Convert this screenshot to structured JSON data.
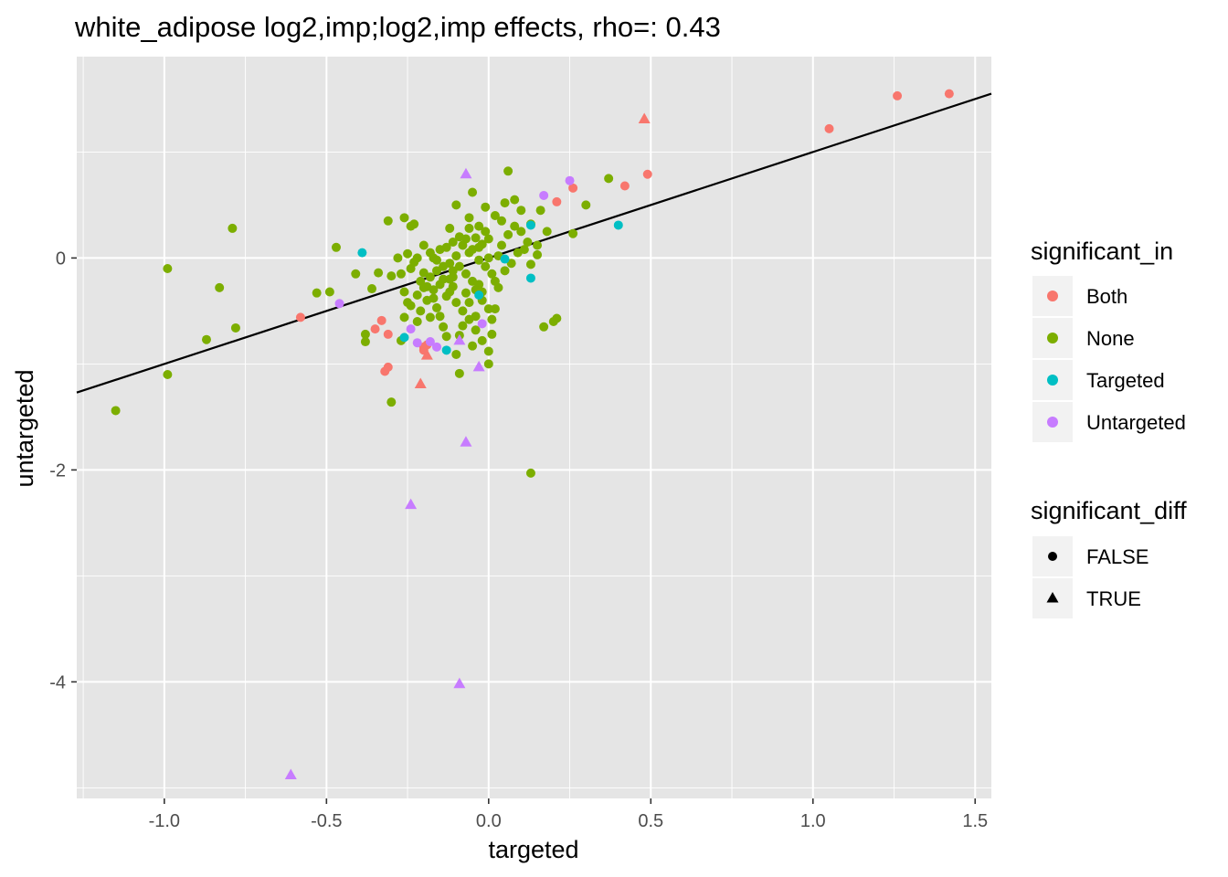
{
  "chart_data": {
    "type": "scatter",
    "title": "white_adipose log2,imp;log2,imp effects, rho=: 0.43",
    "xlabel": "targeted",
    "ylabel": "untargeted",
    "xlim": [
      -1.27,
      1.55
    ],
    "ylim": [
      -5.1,
      1.9
    ],
    "x_ticks": [
      -1.0,
      -0.5,
      0.0,
      0.5,
      1.0,
      1.5
    ],
    "x_tick_labels": [
      "-1.0",
      "-0.5",
      "0.0",
      "0.5",
      "1.0",
      "1.5"
    ],
    "y_ticks": [
      0,
      -2,
      -4
    ],
    "y_tick_labels": [
      "0",
      "-2",
      "-4"
    ],
    "grid": true,
    "panel_background": "#e5e5e5",
    "grid_color": "#ffffff",
    "fit_line": {
      "x": [
        -1.27,
        1.55
      ],
      "y": [
        -1.27,
        1.55
      ],
      "color": "#000000"
    },
    "colors": {
      "Both": "#f8766d",
      "None": "#7cae00",
      "Targeted": "#00bfc4",
      "Untargeted": "#c77cff"
    },
    "legend_placement": "right",
    "legends": [
      {
        "title": "significant_in",
        "kind": "color",
        "entries": [
          "Both",
          "None",
          "Targeted",
          "Untargeted"
        ]
      },
      {
        "title": "significant_diff",
        "kind": "shape",
        "entries": [
          {
            "label": "FALSE",
            "shape": "circle"
          },
          {
            "label": "TRUE",
            "shape": "triangle"
          }
        ]
      }
    ],
    "series": [
      {
        "name": "Both",
        "shape": "circle",
        "points": [
          [
            1.42,
            1.55
          ],
          [
            1.26,
            1.53
          ],
          [
            1.05,
            1.22
          ],
          [
            0.49,
            0.79
          ],
          [
            0.42,
            0.68
          ],
          [
            0.26,
            0.66
          ],
          [
            0.21,
            0.53
          ],
          [
            -0.58,
            -0.56
          ],
          [
            -0.35,
            -0.67
          ],
          [
            -0.33,
            -0.59
          ],
          [
            -0.31,
            -0.72
          ],
          [
            -0.32,
            -1.07
          ],
          [
            -0.31,
            -1.03
          ],
          [
            -0.2,
            -0.84
          ],
          [
            -0.2,
            -0.87
          ],
          [
            -0.19,
            -0.82
          ]
        ]
      },
      {
        "name": "Both",
        "shape": "triangle",
        "points": [
          [
            0.48,
            1.31
          ],
          [
            -0.21,
            -1.19
          ],
          [
            -0.19,
            -0.92
          ]
        ]
      },
      {
        "name": "Targeted",
        "shape": "circle",
        "points": [
          [
            -0.39,
            0.05
          ],
          [
            0.4,
            0.31
          ],
          [
            0.13,
            0.31
          ],
          [
            0.13,
            -0.19
          ],
          [
            0.05,
            -0.01
          ],
          [
            -0.03,
            -0.35
          ],
          [
            -0.13,
            -0.87
          ],
          [
            -0.26,
            -0.75
          ]
        ]
      },
      {
        "name": "Untargeted",
        "shape": "circle",
        "points": [
          [
            0.25,
            0.73
          ],
          [
            0.17,
            0.59
          ],
          [
            -0.46,
            -0.43
          ],
          [
            -0.24,
            -0.67
          ],
          [
            -0.22,
            -0.8
          ],
          [
            -0.16,
            -0.84
          ],
          [
            -0.18,
            -0.79
          ],
          [
            -0.02,
            -0.62
          ]
        ]
      },
      {
        "name": "Untargeted",
        "shape": "triangle",
        "points": [
          [
            -0.07,
            0.79
          ],
          [
            -0.07,
            -1.74
          ],
          [
            -0.24,
            -2.33
          ],
          [
            -0.09,
            -4.02
          ],
          [
            -0.61,
            -4.88
          ],
          [
            -0.09,
            -0.78
          ],
          [
            -0.03,
            -1.03
          ]
        ]
      },
      {
        "name": "None",
        "shape": "circle",
        "points": [
          [
            -1.15,
            -1.44
          ],
          [
            -0.99,
            -0.1
          ],
          [
            -0.99,
            -1.1
          ],
          [
            -0.79,
            0.28
          ],
          [
            -0.83,
            -0.28
          ],
          [
            -0.87,
            -0.77
          ],
          [
            -0.78,
            -0.66
          ],
          [
            -0.47,
            0.1
          ],
          [
            -0.41,
            -0.15
          ],
          [
            -0.38,
            -0.72
          ],
          [
            -0.38,
            -0.79
          ],
          [
            -0.3,
            -1.36
          ],
          [
            -0.53,
            -0.33
          ],
          [
            -0.49,
            -0.32
          ],
          [
            -0.36,
            -0.29
          ],
          [
            -0.31,
            0.35
          ],
          [
            -0.26,
            0.38
          ],
          [
            -0.24,
            0.3
          ],
          [
            -0.23,
            0.32
          ],
          [
            -0.34,
            -0.14
          ],
          [
            -0.3,
            -0.17
          ],
          [
            -0.28,
            0.0
          ],
          [
            -0.27,
            -0.15
          ],
          [
            -0.26,
            -0.32
          ],
          [
            -0.25,
            -0.42
          ],
          [
            -0.27,
            -0.78
          ],
          [
            -0.26,
            -0.56
          ],
          [
            -0.24,
            -0.45
          ],
          [
            -0.22,
            -0.6
          ],
          [
            -0.21,
            -0.22
          ],
          [
            -0.2,
            -0.14
          ],
          [
            -0.19,
            -0.27
          ],
          [
            -0.18,
            -0.56
          ],
          [
            -0.17,
            -0.38
          ],
          [
            -0.16,
            -0.47
          ],
          [
            -0.15,
            -0.55
          ],
          [
            -0.14,
            -0.65
          ],
          [
            -0.13,
            -0.74
          ],
          [
            -0.12,
            -0.2
          ],
          [
            -0.11,
            -0.12
          ],
          [
            -0.1,
            -0.91
          ],
          [
            -0.09,
            -0.73
          ],
          [
            -0.08,
            -0.64
          ],
          [
            -0.07,
            -0.33
          ],
          [
            -0.06,
            -0.42
          ],
          [
            -0.05,
            -0.83
          ],
          [
            -0.04,
            -0.55
          ],
          [
            -0.03,
            -0.25
          ],
          [
            -0.02,
            -0.32
          ],
          [
            0.0,
            -0.88
          ],
          [
            0.01,
            -0.72
          ],
          [
            0.02,
            -0.48
          ],
          [
            0.03,
            -0.28
          ],
          [
            0.05,
            -0.12
          ],
          [
            0.06,
            0.82
          ],
          [
            0.08,
            0.55
          ],
          [
            0.1,
            0.25
          ],
          [
            0.11,
            0.08
          ],
          [
            0.12,
            0.15
          ],
          [
            0.13,
            -0.06
          ],
          [
            0.15,
            0.03
          ],
          [
            0.16,
            0.45
          ],
          [
            0.18,
            0.25
          ],
          [
            0.2,
            -0.6
          ],
          [
            0.21,
            -0.57
          ],
          [
            0.17,
            -0.65
          ],
          [
            0.13,
            -2.03
          ],
          [
            0.3,
            0.5
          ],
          [
            0.26,
            0.23
          ],
          [
            0.37,
            0.75
          ],
          [
            -0.1,
            0.5
          ],
          [
            -0.05,
            0.62
          ],
          [
            -0.01,
            0.48
          ],
          [
            0.04,
            0.35
          ],
          [
            -0.04,
            0.19
          ],
          [
            -0.09,
            -1.09
          ],
          [
            -0.06,
            0.28
          ],
          [
            -0.02,
            0.13
          ],
          [
            -0.03,
            0.1
          ],
          [
            -0.06,
            0.05
          ],
          [
            -0.08,
            0.12
          ],
          [
            -0.1,
            0.02
          ],
          [
            -0.12,
            -0.05
          ],
          [
            -0.14,
            -0.08
          ],
          [
            -0.16,
            -0.12
          ],
          [
            -0.18,
            -0.18
          ],
          [
            -0.2,
            -0.28
          ],
          [
            -0.22,
            -0.35
          ],
          [
            -0.24,
            -0.1
          ],
          [
            -0.13,
            0.1
          ],
          [
            -0.11,
            0.15
          ],
          [
            -0.09,
            0.2
          ],
          [
            -0.07,
            0.18
          ],
          [
            -0.05,
            0.08
          ],
          [
            -0.03,
            -0.02
          ],
          [
            -0.01,
            -0.08
          ],
          [
            0.01,
            -0.15
          ],
          [
            0.02,
            -0.22
          ],
          [
            0.03,
            0.02
          ],
          [
            0.04,
            0.12
          ],
          [
            0.06,
            0.22
          ],
          [
            0.08,
            0.3
          ],
          [
            0.09,
            0.05
          ],
          [
            0.07,
            -0.05
          ],
          [
            -0.15,
            -0.25
          ],
          [
            -0.17,
            -0.3
          ],
          [
            -0.19,
            -0.4
          ],
          [
            -0.21,
            -0.5
          ],
          [
            -0.23,
            -0.04
          ],
          [
            -0.25,
            0.04
          ],
          [
            -0.12,
            -0.32
          ],
          [
            -0.1,
            -0.42
          ],
          [
            -0.08,
            -0.5
          ],
          [
            -0.06,
            -0.58
          ],
          [
            -0.04,
            -0.68
          ],
          [
            -0.02,
            -0.78
          ],
          [
            0.0,
            -1.0
          ],
          [
            -0.01,
            0.25
          ],
          [
            0.02,
            0.4
          ],
          [
            0.05,
            0.52
          ],
          [
            -0.15,
            0.08
          ],
          [
            -0.17,
            0.0
          ],
          [
            -0.11,
            -0.27
          ],
          [
            -0.07,
            -0.15
          ],
          [
            -0.05,
            -0.22
          ],
          [
            -0.04,
            -0.3
          ],
          [
            -0.02,
            -0.4
          ],
          [
            0.0,
            -0.48
          ],
          [
            0.01,
            -0.58
          ],
          [
            -0.09,
            -0.08
          ],
          [
            -0.11,
            -0.18
          ],
          [
            -0.13,
            -0.36
          ],
          [
            -0.14,
            -0.2
          ],
          [
            -0.16,
            -0.02
          ],
          [
            -0.18,
            0.05
          ],
          [
            -0.2,
            0.12
          ],
          [
            -0.22,
            0.0
          ],
          [
            0.0,
            0.0
          ],
          [
            0.1,
            0.45
          ],
          [
            0.13,
            0.32
          ],
          [
            0.15,
            0.12
          ],
          [
            -0.06,
            0.38
          ],
          [
            -0.03,
            0.3
          ],
          [
            0.0,
            0.18
          ],
          [
            -0.12,
            0.28
          ]
        ]
      }
    ]
  }
}
